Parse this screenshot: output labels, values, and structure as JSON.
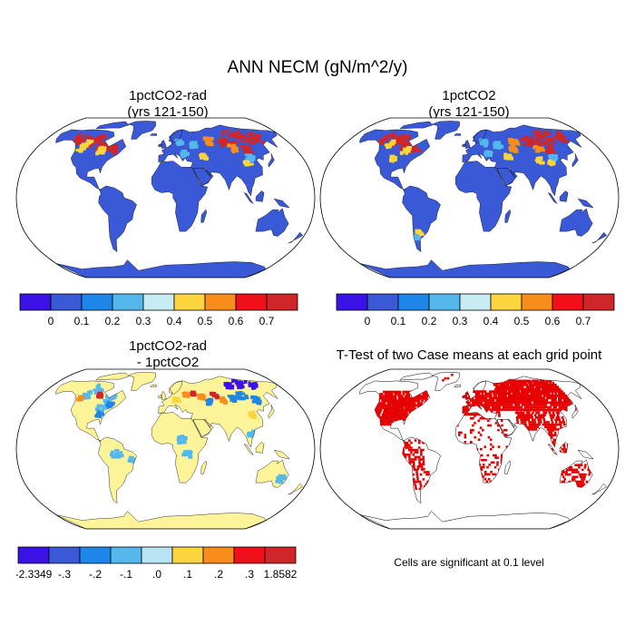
{
  "title": "ANN NECM (gN/m^2/y)",
  "panels": [
    {
      "id": "rad",
      "title_lines": [
        "1pctCO2-rad",
        "(yrs 121-150)"
      ],
      "colorbar": {
        "colors": [
          "#3a12e6",
          "#3a59d6",
          "#1e86e8",
          "#54b8ec",
          "#c8ecf4",
          "#fbd43e",
          "#f98d1c",
          "#f10f1a",
          "#d0262a"
        ],
        "labels": [
          "0",
          "0.1",
          "0.2",
          "0.3",
          "0.4",
          "0.5",
          "0.6",
          "0.7"
        ]
      }
    },
    {
      "id": "full",
      "title_lines": [
        "1pctCO2",
        "(yrs 121-150)"
      ],
      "colorbar": {
        "colors": [
          "#3a12e6",
          "#3a59d6",
          "#1e86e8",
          "#54b8ec",
          "#c8ecf4",
          "#fbd43e",
          "#f98d1c",
          "#f10f1a",
          "#d0262a"
        ],
        "labels": [
          "0",
          "0.1",
          "0.2",
          "0.3",
          "0.4",
          "0.5",
          "0.6",
          "0.7"
        ]
      }
    },
    {
      "id": "diff",
      "title_lines": [
        "1pctCO2-rad",
        "- 1pctCO2"
      ],
      "colorbar": {
        "colors": [
          "#3a12e6",
          "#3a59d6",
          "#1e86e8",
          "#54b8ec",
          "#b8e4f4",
          "#fbd43e",
          "#f98d1c",
          "#f10f1a",
          "#d0262a"
        ],
        "labels": [
          "-2.3349",
          "-.3",
          "-.2",
          "-.1",
          ".0",
          ".1",
          ".2",
          ".3",
          "1.8582"
        ]
      }
    },
    {
      "id": "ttest",
      "title_lines": [
        "T-Test of two Case means at each grid point"
      ],
      "note": "Cells are significant at 0.1 level",
      "significance_color": "#e60000"
    }
  ],
  "map_colors": {
    "ocean": "#ffffff",
    "land_rad": "#3a59d6",
    "land_full": "#3a59d6",
    "land_diff": "#fdf49a",
    "coast": "#000000"
  }
}
